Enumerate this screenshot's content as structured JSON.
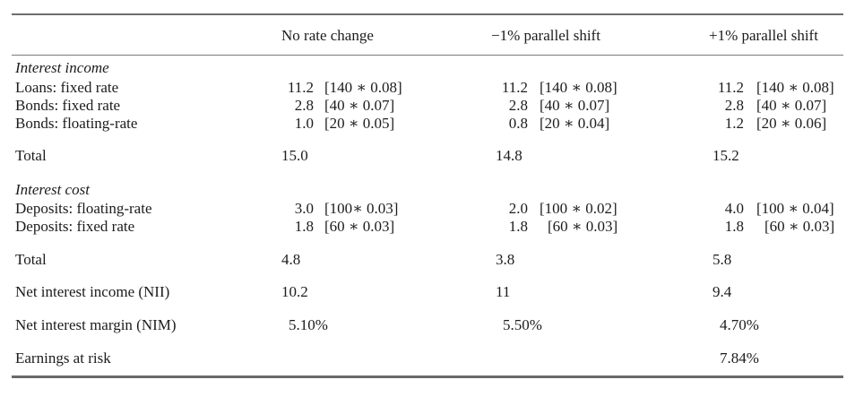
{
  "table": {
    "headers": [
      "",
      "No rate change",
      "−1% parallel shift",
      "+1% parallel shift"
    ],
    "sections": {
      "income_title": "Interest income",
      "cost_title": "Interest cost"
    },
    "rows": {
      "loans_fixed": {
        "label": "Loans: fixed rate",
        "no_change": {
          "value": "11.2",
          "formula": "[140 ∗ 0.08]"
        },
        "minus1": {
          "value": "11.2",
          "formula": "[140 ∗ 0.08]"
        },
        "plus1": {
          "value": "11.2",
          "formula": "[140 ∗ 0.08]"
        }
      },
      "bonds_fixed": {
        "label": "Bonds: fixed rate",
        "no_change": {
          "value": "2.8",
          "formula": "[40 ∗ 0.07]"
        },
        "minus1": {
          "value": "2.8",
          "formula": "[40 ∗ 0.07]"
        },
        "plus1": {
          "value": "2.8",
          "formula": "[40 ∗ 0.07]"
        }
      },
      "bonds_floating": {
        "label": "Bonds: floating-rate",
        "no_change": {
          "value": "1.0",
          "formula": "[20 ∗ 0.05]"
        },
        "minus1": {
          "value": "0.8",
          "formula": "[20 ∗ 0.04]"
        },
        "plus1": {
          "value": "1.2",
          "formula": "[20 ∗ 0.06]"
        }
      },
      "income_total": {
        "label": "Total",
        "no_change": "15.0",
        "minus1": "14.8",
        "plus1": "15.2"
      },
      "deposits_floating": {
        "label": "Deposits: floating-rate",
        "no_change": {
          "value": "3.0",
          "formula": "[100∗ 0.03]"
        },
        "minus1": {
          "value": "2.0",
          "formula": "[100 ∗ 0.02]"
        },
        "plus1": {
          "value": "4.0",
          "formula": "[100 ∗ 0.04]"
        }
      },
      "deposits_fixed": {
        "label": "Deposits: fixed rate",
        "no_change": {
          "value": "1.8",
          "formula": "[60 ∗ 0.03]"
        },
        "minus1": {
          "value": "1.8",
          "formula": "[60 ∗ 0.03]"
        },
        "plus1": {
          "value": "1.8",
          "formula": "[60 ∗ 0.03]"
        }
      },
      "cost_total": {
        "label": "Total",
        "no_change": "4.8",
        "minus1": "3.8",
        "plus1": "5.8"
      },
      "nii": {
        "label": "Net interest income (NII)",
        "no_change": "10.2",
        "minus1": "11",
        "plus1": "9.4"
      },
      "nim": {
        "label": "Net interest margin (NIM)",
        "no_change": "5.10%",
        "minus1": "5.50%",
        "plus1": "4.70%"
      },
      "ear": {
        "label": "Earnings at risk",
        "no_change": "",
        "minus1": "",
        "plus1": "7.84%"
      }
    }
  }
}
